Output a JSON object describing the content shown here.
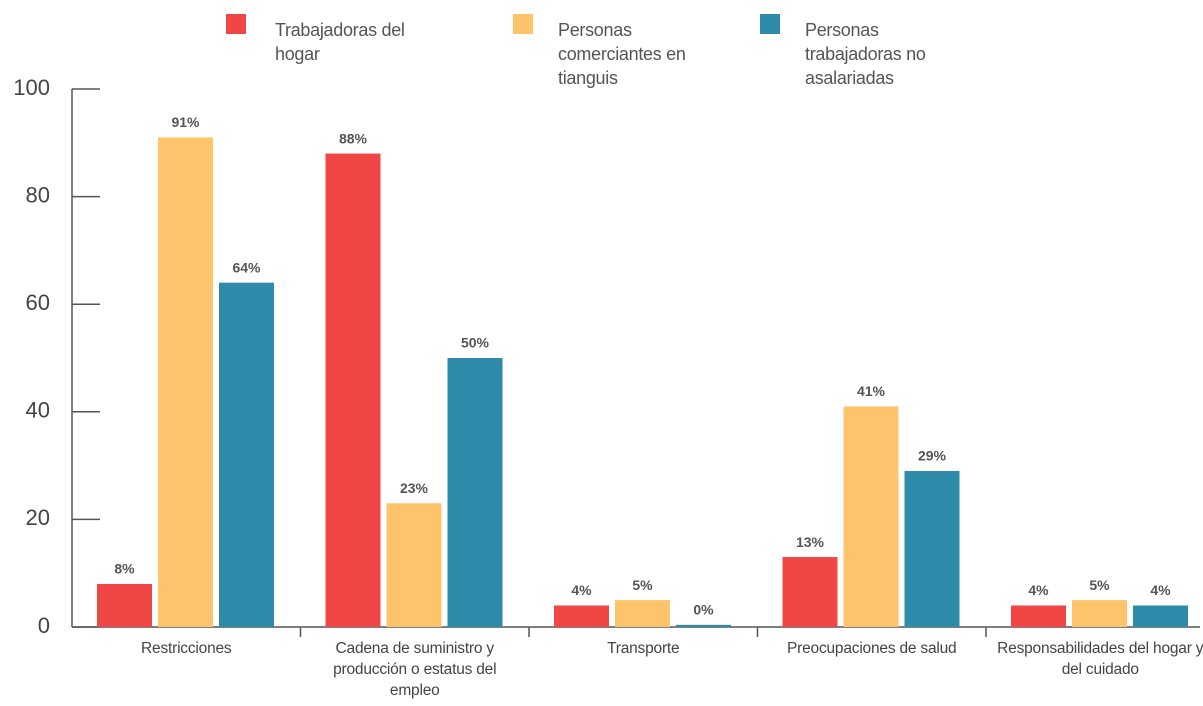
{
  "chart_data": {
    "type": "bar",
    "categories": [
      "Restricciones",
      "Cadena de suministro y producción o estatus del empleo",
      "Transporte",
      "Preocupaciones de salud",
      "Responsabilidades del hogar y del cuidado"
    ],
    "series": [
      {
        "name": "Trabajadoras del hogar",
        "color": "#f04646",
        "values": [
          8,
          88,
          4,
          13,
          4
        ],
        "value_labels": [
          "8%",
          "88%",
          "4%",
          "13%",
          "4%"
        ]
      },
      {
        "name": "Personas comerciantes en tianguis",
        "color": "#fdc46b",
        "values": [
          91,
          23,
          5,
          41,
          5
        ],
        "value_labels": [
          "91%",
          "23%",
          "5%",
          "41%",
          "5%"
        ]
      },
      {
        "name": "Personas trabajadoras no asalariadas",
        "color": "#2e8ba9",
        "values": [
          64,
          50,
          0.4,
          29,
          4
        ],
        "value_labels": [
          "64%",
          "50%",
          "0%",
          "29%",
          "4%"
        ]
      }
    ],
    "ylim": [
      0,
      100
    ],
    "yticks": [
      0,
      20,
      40,
      60,
      80,
      100
    ]
  }
}
